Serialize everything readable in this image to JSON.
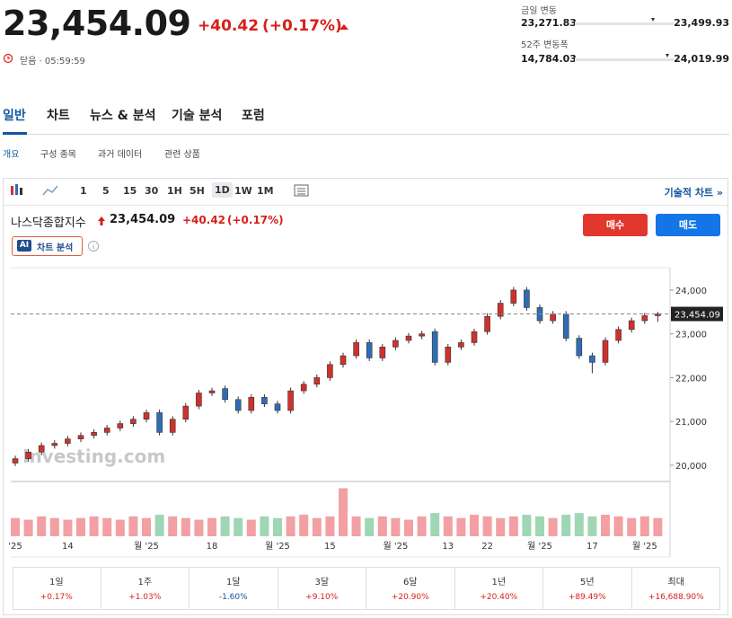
{
  "header": {
    "price": "23,454.09",
    "change": "+40.42",
    "change_pct": "(+0.17%)",
    "status": "닫음 · 05:59:59",
    "day_range": {
      "label": "금일 변동",
      "low": "23,271.83",
      "high": "23,499.93"
    },
    "week52_range": {
      "label": "52주 변동폭",
      "low": "14,784.03",
      "high": "24,019.99"
    }
  },
  "tabs": [
    "일반",
    "차트",
    "뉴스 & 분석",
    "기술 분석",
    "포럼"
  ],
  "subtabs": [
    "개요",
    "구성 종목",
    "과거 데이터",
    "관련 상품"
  ],
  "toolbar": {
    "intervals": [
      "1",
      "5",
      "15",
      "30",
      "1H",
      "5H",
      "1D",
      "1W",
      "1M"
    ],
    "advanced": "기술적 차트 »"
  },
  "buttons": {
    "buy": "매수",
    "sell": "매도",
    "ai": "차트 분석",
    "ai_badge": "AI"
  },
  "chart_data": {
    "type": "candlestick",
    "title": "나스닥종합지수",
    "watermark": "Investing.com",
    "up_color": "#d0312d",
    "down_color": "#2f6db3",
    "up_volume_color": "#f2a0a3",
    "down_volume_color": "#9fd6b4",
    "categories": [
      "'25",
      null,
      null,
      null,
      "14",
      null,
      null,
      null,
      null,
      null,
      "월 '25",
      null,
      null,
      null,
      null,
      "18",
      null,
      null,
      null,
      null,
      "월 '25",
      null,
      null,
      null,
      "15",
      null,
      null,
      null,
      null,
      "월 '25",
      null,
      null,
      null,
      "13",
      null,
      null,
      "22",
      null,
      null,
      null,
      "월 '25",
      null,
      null,
      null,
      "17",
      null,
      null,
      null,
      "월 '25",
      null
    ],
    "open": [
      20050,
      20150,
      20300,
      20450,
      20500,
      20600,
      20680,
      20750,
      20850,
      20950,
      21050,
      21200,
      20750,
      21050,
      21350,
      21650,
      21750,
      21500,
      21250,
      21550,
      21400,
      21250,
      21700,
      21850,
      22000,
      22300,
      22500,
      22800,
      22450,
      22700,
      22850,
      22950,
      23050,
      22350,
      22700,
      22800,
      23050,
      23400,
      23700,
      24000,
      23600,
      23300,
      23450,
      22900,
      22500,
      22350,
      22850,
      23100,
      23300,
      23414
    ],
    "high": [
      20220,
      20370,
      20520,
      20570,
      20670,
      20750,
      20820,
      20920,
      21020,
      21120,
      21270,
      21270,
      21120,
      21420,
      21720,
      21770,
      21820,
      21570,
      21620,
      21620,
      21470,
      21770,
      21920,
      22070,
      22370,
      22570,
      22870,
      22870,
      22770,
      22920,
      23020,
      23070,
      23120,
      22770,
      22870,
      23120,
      23470,
      23770,
      24070,
      24070,
      23670,
      23520,
      23520,
      22970,
      22570,
      22920,
      23170,
      23370,
      23480,
      23500
    ],
    "low": [
      19980,
      20080,
      20230,
      20380,
      20430,
      20530,
      20610,
      20680,
      20780,
      20880,
      20980,
      20680,
      20680,
      20980,
      21280,
      21580,
      21430,
      21180,
      21180,
      21330,
      21180,
      21180,
      21630,
      21780,
      21930,
      22230,
      22430,
      22380,
      22380,
      22630,
      22780,
      22880,
      22280,
      22280,
      22630,
      22730,
      22980,
      23330,
      23630,
      23530,
      23230,
      23230,
      22830,
      22430,
      22100,
      22280,
      22780,
      23030,
      23230,
      23272
    ],
    "close": [
      20150,
      20300,
      20450,
      20500,
      20600,
      20680,
      20750,
      20850,
      20950,
      21050,
      21200,
      20750,
      21050,
      21350,
      21650,
      21700,
      21500,
      21250,
      21550,
      21400,
      21250,
      21700,
      21850,
      22000,
      22300,
      22500,
      22800,
      22450,
      22700,
      22850,
      22950,
      23000,
      22350,
      22700,
      22800,
      23050,
      23400,
      23700,
      24000,
      23600,
      23300,
      23450,
      22900,
      22500,
      22350,
      22850,
      23100,
      23300,
      23414,
      23454
    ],
    "volume": [
      11,
      10,
      12,
      11,
      10,
      11,
      12,
      11,
      10,
      12,
      11,
      13,
      12,
      11,
      10,
      11,
      12,
      11,
      10,
      12,
      11,
      12,
      13,
      11,
      12,
      29,
      12,
      11,
      12,
      11,
      10,
      12,
      14,
      12,
      11,
      13,
      12,
      11,
      12,
      13,
      12,
      11,
      13,
      14,
      12,
      13,
      12,
      11,
      12,
      11
    ],
    "ylim": [
      19650,
      24470
    ],
    "vlim": [
      0,
      32
    ],
    "yticks": [
      {
        "value": 20000,
        "label": "20,000"
      },
      {
        "value": 21000,
        "label": "21,000"
      },
      {
        "value": 22000,
        "label": "22,000"
      },
      {
        "value": 23000,
        "label": "23,000"
      },
      {
        "value": 24000,
        "label": "24,000"
      }
    ],
    "last_price": {
      "value": 23454.09,
      "label": "23,454.09"
    }
  },
  "performance": [
    {
      "period": "1일",
      "change": "+0.17%"
    },
    {
      "period": "1주",
      "change": "+1.03%"
    },
    {
      "period": "1달",
      "change": "-1.60%"
    },
    {
      "period": "3달",
      "change": "+9.10%"
    },
    {
      "period": "6달",
      "change": "+20.90%"
    },
    {
      "period": "1년",
      "change": "+20.40%"
    },
    {
      "period": "5년",
      "change": "+89.49%"
    },
    {
      "period": "최대",
      "change": "+16,688.90%"
    }
  ]
}
